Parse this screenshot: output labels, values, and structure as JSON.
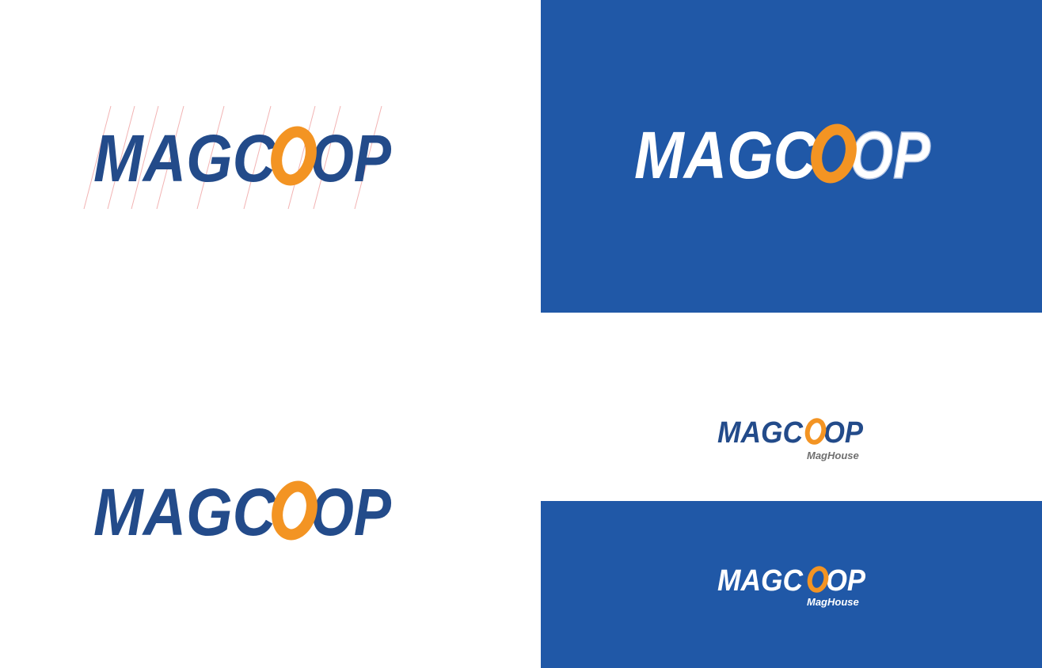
{
  "colors": {
    "navy": "#234b8a",
    "orange": "#f39423",
    "blue_panel": "#2058a7",
    "white": "#ffffff",
    "guide_lines": "#f2b3b3",
    "gray_text": "#6f6f6f"
  },
  "logo": {
    "part1": "MAGC",
    "part2": "OP"
  },
  "sub_brand": "MagHouse"
}
